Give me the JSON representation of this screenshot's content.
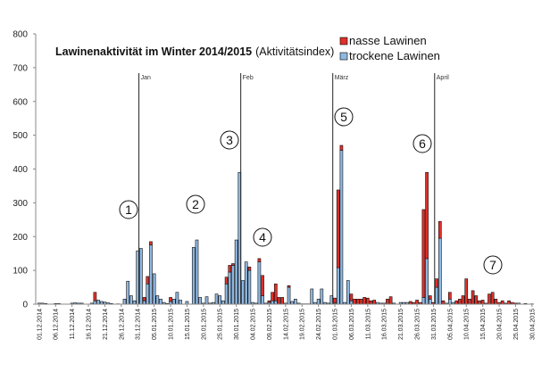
{
  "chart_data": {
    "type": "bar",
    "stacked": true,
    "title": "Lawinenaktivität im Winter 2014/2015",
    "subtitle": "(Aktivitätsindex)",
    "xlabel": "",
    "ylabel": "",
    "ylim": [
      0,
      800
    ],
    "yticks": [
      "0",
      "100",
      "200",
      "300",
      "400",
      "500",
      "600",
      "700",
      "800"
    ],
    "grid": false,
    "legend_position": "top-right",
    "x_start": "01.12.2014",
    "x_end": "30.04.2015",
    "xtick_labels": [
      "01.12.2014",
      "06.12.2014",
      "11.12.2014",
      "16.12.2014",
      "21.12.2014",
      "26.12.2014",
      "31.12.2014",
      "05.01.2015",
      "10.01.2015",
      "15.01.2015",
      "20.01.2015",
      "25.01.2015",
      "30.01.2015",
      "04.02.2015",
      "09.02.2015",
      "14.02.2015",
      "19.02.2015",
      "24.02.2015",
      "01.03.2015",
      "06.03.2015",
      "11.03.2015",
      "16.03.2015",
      "21.03.2015",
      "26.03.2015",
      "31.03.2015",
      "05.04.2015",
      "10.04.2015",
      "15.04.2015",
      "20.04.2015",
      "25.04.2015",
      "30.04.2015"
    ],
    "month_markers": [
      {
        "label": "Jan",
        "day": 31
      },
      {
        "label": "Feb",
        "day": 62
      },
      {
        "label": "März",
        "day": 90
      },
      {
        "label": "April",
        "day": 121
      }
    ],
    "annotations": [
      {
        "label": "1"
      },
      {
        "label": "2"
      },
      {
        "label": "3"
      },
      {
        "label": "4"
      },
      {
        "label": "5"
      },
      {
        "label": "6"
      },
      {
        "label": "7"
      }
    ],
    "series": [
      {
        "name": "nasse Lawinen",
        "color": "#e0302a",
        "values": [
          0,
          0,
          0,
          0,
          0,
          0,
          0,
          0,
          0,
          0,
          0,
          0,
          0,
          0,
          0,
          0,
          0,
          25,
          0,
          0,
          0,
          0,
          0,
          0,
          0,
          0,
          0,
          0,
          0,
          0,
          0,
          0,
          10,
          22,
          10,
          0,
          0,
          0,
          0,
          0,
          12,
          0,
          0,
          0,
          0,
          0,
          0,
          0,
          0,
          0,
          0,
          0,
          0,
          0,
          0,
          0,
          0,
          20,
          20,
          5,
          0,
          0,
          0,
          0,
          10,
          0,
          0,
          10,
          60,
          0,
          5,
          25,
          50,
          20,
          20,
          0,
          5,
          0,
          0,
          0,
          0,
          0,
          0,
          0,
          0,
          0,
          0,
          0,
          0,
          0,
          15,
          230,
          15,
          0,
          0,
          20,
          15,
          15,
          15,
          20,
          18,
          10,
          12,
          0,
          0,
          0,
          15,
          22,
          0,
          0,
          0,
          0,
          0,
          8,
          5,
          12,
          5,
          260,
          255,
          10,
          5,
          25,
          50,
          10,
          0,
          20,
          0,
          10,
          15,
          25,
          75,
          15,
          40,
          25,
          10,
          12,
          3,
          30,
          35,
          15,
          5,
          10,
          3,
          10,
          5,
          3,
          0,
          0,
          0,
          0,
          0
        ]
      },
      {
        "name": "trockene Lawinen",
        "color": "#8fb8e0",
        "values": [
          3,
          3,
          2,
          0,
          0,
          2,
          2,
          0,
          0,
          0,
          3,
          4,
          3,
          3,
          0,
          0,
          3,
          10,
          12,
          8,
          6,
          4,
          2,
          0,
          1,
          0,
          15,
          68,
          25,
          10,
          158,
          165,
          10,
          60,
          175,
          90,
          25,
          15,
          5,
          2,
          8,
          15,
          35,
          12,
          0,
          8,
          0,
          168,
          190,
          20,
          3,
          22,
          3,
          5,
          30,
          25,
          10,
          60,
          95,
          115,
          190,
          390,
          70,
          125,
          100,
          5,
          3,
          125,
          25,
          3,
          5,
          10,
          10,
          0,
          0,
          3,
          50,
          8,
          15,
          3,
          1,
          1,
          1,
          45,
          5,
          15,
          45,
          5,
          3,
          25,
          3,
          108,
          455,
          5,
          70,
          10,
          0,
          0,
          0,
          0,
          0,
          0,
          0,
          5,
          3,
          3,
          0,
          0,
          3,
          0,
          5,
          5,
          5,
          0,
          0,
          0,
          0,
          20,
          135,
          15,
          0,
          50,
          195,
          0,
          3,
          15,
          5,
          0,
          0,
          0,
          0,
          0,
          0,
          0,
          0,
          0,
          0,
          0,
          0,
          0,
          0,
          0,
          0,
          0,
          0,
          0,
          3,
          0,
          2,
          0,
          1
        ]
      }
    ]
  }
}
